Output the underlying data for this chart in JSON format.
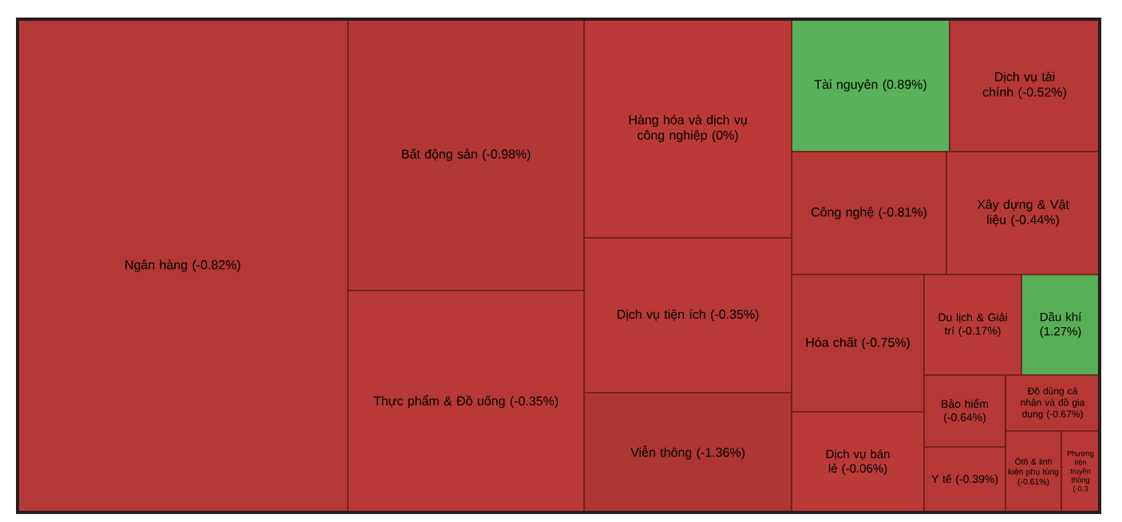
{
  "chart_data": {
    "type": "other",
    "categories": [
      "Ngân hàng",
      "Bất động sản",
      "Thực phẩm & Đồ uống",
      "Hàng hóa và dịch vụ công nghiệp",
      "Dịch vụ tiện ích",
      "Viễn thông",
      "Tài nguyên",
      "Dịch vụ tài chính",
      "Công nghệ",
      "Xây dựng & Vật liệu",
      "Hóa chất",
      "Dịch vụ bán lẻ",
      "Du lịch & Giải trí",
      "Dầu khí",
      "Bảo hiểm",
      "Y tế",
      "Đồ dùng cá nhân và đồ gia dụng",
      "Ôtô & linh kiện phụ tùng",
      "Phương tiện truyền thông"
    ],
    "values": [
      -0.82,
      -0.98,
      -0.35,
      0,
      -0.35,
      -1.36,
      0.89,
      -0.52,
      -0.81,
      -0.44,
      -0.75,
      -0.06,
      -0.17,
      1.27,
      -0.64,
      -0.39,
      -0.67,
      -0.61,
      -0.3
    ],
    "value_labels": [
      "(-0.82%)",
      "(-0.98%)",
      "(-0.35%)",
      "(0%)",
      "(-0.35%)",
      "(-1.36%)",
      "(0.89%)",
      "(-0.52%)",
      "(-0.81%)",
      "(-0.44%)",
      "(-0.75%)",
      "(-0.06%)",
      "(-0.17%)",
      "(1.27%)",
      "(-0.64%)",
      "(-0.39%)",
      "(-0.67%)",
      "(-0.61%)",
      "(-0.3"
    ],
    "colors": [
      "#bb3a38",
      "#bb3a38",
      "#bb3a38",
      "#bb3a38",
      "#bb3a38",
      "#bb3a38",
      "#5dba5d",
      "#bb3a38",
      "#bb3a38",
      "#bb3a38",
      "#bb3a38",
      "#bb3a38",
      "#bb3a38",
      "#5dba5d",
      "#bb3a38",
      "#bb3a38",
      "#bb3a38",
      "#bb3a38",
      "#bb3a38"
    ]
  }
}
